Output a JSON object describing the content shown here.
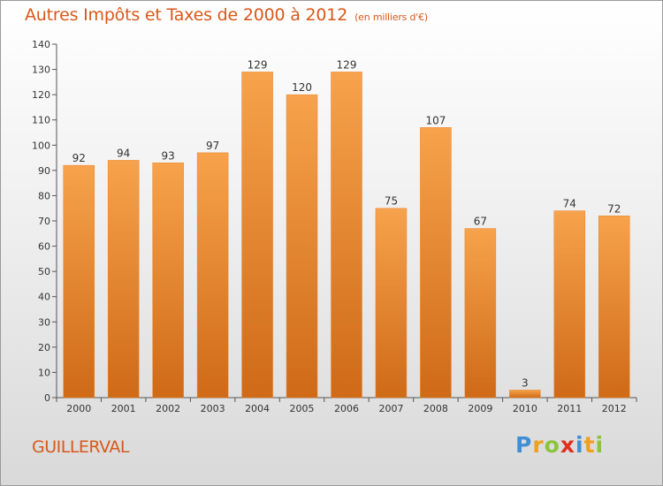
{
  "title": "Autres Impôts et Taxes de 2000 à 2012",
  "subtitle": "(en milliers d'€)",
  "commune": "GUILLERVAL",
  "logo": {
    "letters": [
      "P",
      "r",
      "o",
      "x",
      "i",
      "t",
      "i"
    ],
    "colors": [
      "#3f8fd6",
      "#f0a020",
      "#8cc43c",
      "#e03020",
      "#3f8fd6",
      "#f0a020",
      "#8cc43c"
    ]
  },
  "chart_data": {
    "type": "bar",
    "title": "Autres Impôts et Taxes de 2000 à 2012",
    "subtitle": "(en milliers d'€)",
    "categories": [
      "2000",
      "2001",
      "2002",
      "2003",
      "2004",
      "2005",
      "2006",
      "2007",
      "2008",
      "2009",
      "2010",
      "2011",
      "2012"
    ],
    "values": [
      92,
      94,
      93,
      97,
      129,
      120,
      129,
      75,
      107,
      67,
      3,
      74,
      72
    ],
    "ylim": [
      0,
      140
    ],
    "yticks": [
      0,
      10,
      20,
      30,
      40,
      50,
      60,
      70,
      80,
      90,
      100,
      110,
      120,
      130,
      140
    ],
    "grid": false,
    "bar_color": "#f0943a"
  }
}
